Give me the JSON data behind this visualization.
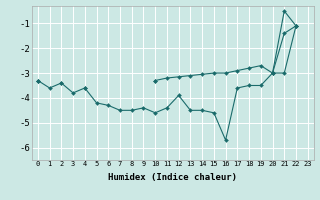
{
  "title": "",
  "xlabel": "Humidex (Indice chaleur)",
  "background_color": "#cce8e4",
  "grid_color": "#ffffff",
  "line_color": "#1a6b6b",
  "x_values": [
    0,
    1,
    2,
    3,
    4,
    5,
    6,
    7,
    8,
    9,
    10,
    11,
    12,
    13,
    14,
    15,
    16,
    17,
    18,
    19,
    20,
    21,
    22,
    23
  ],
  "line1": [
    -3.3,
    -3.6,
    -3.4,
    -3.8,
    -3.6,
    -4.2,
    -4.3,
    -4.5,
    -4.5,
    -4.4,
    -4.6,
    -4.4,
    -3.9,
    -4.5,
    -4.5,
    -4.6,
    -5.7,
    -3.6,
    -3.5,
    -3.5,
    -3.0,
    -0.5,
    -1.1,
    null
  ],
  "line2": [
    -3.3,
    null,
    -3.4,
    null,
    -3.6,
    null,
    null,
    null,
    null,
    null,
    -3.3,
    null,
    null,
    null,
    null,
    null,
    null,
    null,
    null,
    null,
    -3.0,
    -3.0,
    -1.1,
    null
  ],
  "line3": [
    -3.3,
    null,
    null,
    null,
    null,
    null,
    null,
    null,
    null,
    null,
    -3.3,
    -3.2,
    -3.15,
    -3.1,
    -3.05,
    -3.0,
    -3.0,
    -2.9,
    -2.8,
    -2.7,
    -3.0,
    -1.4,
    -1.1,
    null
  ],
  "ylim": [
    -6.5,
    -0.3
  ],
  "yticks": [
    -6,
    -5,
    -4,
    -3,
    -2,
    -1
  ],
  "xlim": [
    -0.5,
    23.5
  ]
}
